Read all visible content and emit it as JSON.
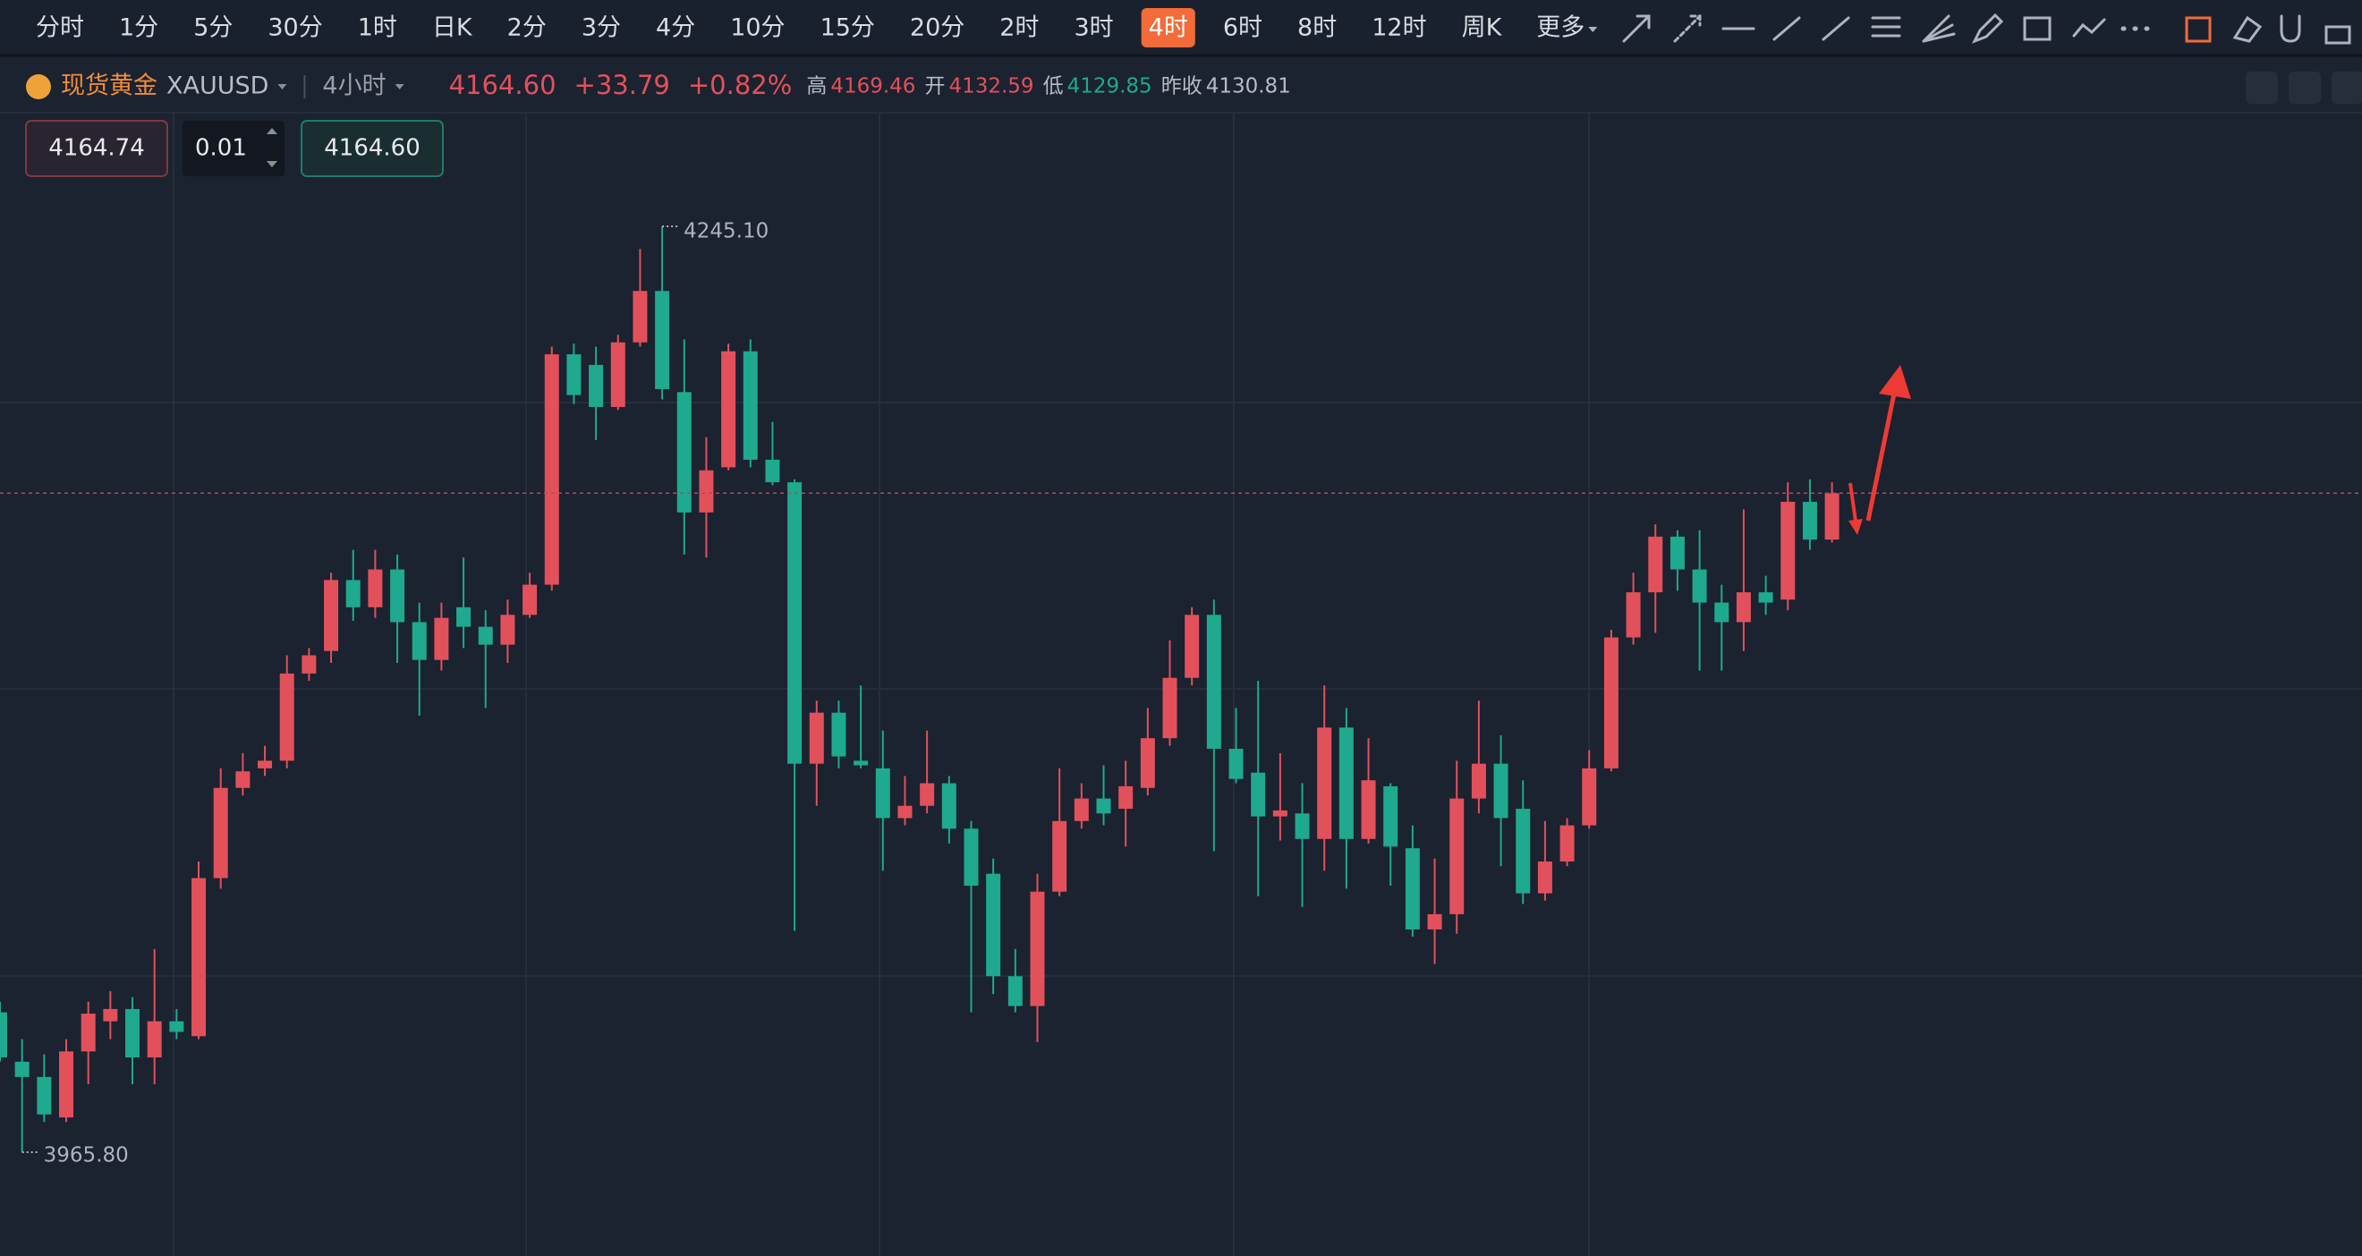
{
  "toolbar": {
    "intervals": [
      {
        "label": "分时"
      },
      {
        "label": "1分"
      },
      {
        "label": "5分"
      },
      {
        "label": "30分"
      },
      {
        "label": "1时"
      },
      {
        "label": "日K"
      },
      {
        "label": "2分"
      },
      {
        "label": "3分"
      },
      {
        "label": "4分"
      },
      {
        "label": "10分"
      },
      {
        "label": "15分"
      },
      {
        "label": "20分"
      },
      {
        "label": "2时"
      },
      {
        "label": "3时"
      },
      {
        "label": "4时",
        "active": true
      },
      {
        "label": "6时"
      },
      {
        "label": "8时"
      },
      {
        "label": "12时"
      },
      {
        "label": "周K"
      },
      {
        "label": "更多"
      }
    ]
  },
  "header": {
    "name": "现货黄金",
    "symbol": "XAUUSD",
    "interval": "4小时",
    "price": "4164.60",
    "change": "+33.79",
    "change_pct": "+0.82%",
    "high_label": "高",
    "high": "4169.46",
    "open_label": "开",
    "open": "4132.59",
    "low_label": "低",
    "low": "4129.85",
    "prev_close_label": "昨收",
    "prev_close": "4130.81"
  },
  "order_panel": {
    "sell": "4164.74",
    "lots": "0.01",
    "buy": "4164.60"
  },
  "chart_data": {
    "type": "candlestick",
    "up_color": "#e2515b",
    "down_color": "#1fa98e",
    "grid": true,
    "max_label": "4245.10",
    "min_label": "3965.80",
    "open": [
      4008.0,
      3993.1,
      3988.5,
      3976.3,
      3996.2,
      4005.3,
      4009.0,
      3994.4,
      4005.3,
      4000.8,
      4048.5,
      4075.7,
      4081.6,
      4083.9,
      4110.2,
      4117.0,
      4138.4,
      4130.2,
      4141.6,
      4125.7,
      4114.3,
      4130.2,
      4124.3,
      4118.9,
      4127.9,
      4137.0,
      4206.5,
      4203.3,
      4190.6,
      4210.1,
      4225.6,
      4195.1,
      4158.8,
      4172.4,
      4207.4,
      4174.7,
      4167.9,
      4083.0,
      4098.4,
      4083.9,
      4081.6,
      4066.6,
      4070.3,
      4077.1,
      4063.4,
      4049.8,
      4018.9,
      4009.9,
      4044.4,
      4065.7,
      4072.5,
      4069.4,
      4075.7,
      4090.7,
      4108.9,
      4127.9,
      4087.5,
      4080.3,
      4067.1,
      4068.0,
      4060.3,
      4093.9,
      4060.3,
      4076.2,
      4057.5,
      4033.0,
      4037.6,
      4072.5,
      4083.0,
      4069.4,
      4043.9,
      4053.5,
      4064.4,
      4081.6,
      4121.1,
      4134.7,
      4151.5,
      4141.6,
      4131.6,
      4125.7,
      4134.7,
      4132.5,
      4162.0,
      4150.6
    ],
    "high": [
      4011.2,
      3999.9,
      3995.3,
      3999.9,
      4011.2,
      4014.4,
      4012.6,
      4027.1,
      4009.0,
      4053.5,
      4081.6,
      4086.2,
      4088.4,
      4115.7,
      4117.9,
      4140.6,
      4147.5,
      4147.5,
      4146.1,
      4131.6,
      4131.6,
      4145.2,
      4129.3,
      4132.5,
      4140.6,
      4208.8,
      4209.7,
      4208.8,
      4212.4,
      4238.3,
      4245.1,
      4211.0,
      4181.5,
      4209.7,
      4211.0,
      4186.1,
      4168.8,
      4102.0,
      4102.0,
      4106.6,
      4093.0,
      4079.3,
      4093.0,
      4079.3,
      4065.7,
      4054.4,
      4027.1,
      4049.8,
      4081.6,
      4077.1,
      4082.5,
      4083.9,
      4099.8,
      4120.2,
      4130.2,
      4132.5,
      4099.8,
      4108.0,
      4086.2,
      4077.1,
      4106.6,
      4099.8,
      4090.7,
      4077.1,
      4064.4,
      4054.4,
      4083.9,
      4102.0,
      4091.6,
      4078.0,
      4065.7,
      4066.6,
      4087.1,
      4123.4,
      4140.6,
      4155.2,
      4153.4,
      4153.4,
      4137.0,
      4159.7,
      4139.7,
      4167.9,
      4168.8,
      4167.9
    ],
    "low": [
      3993.1,
      3965.8,
      3974.9,
      3974.9,
      3986.3,
      3999.9,
      3986.3,
      3986.3,
      3999.9,
      3999.9,
      4045.3,
      4073.4,
      4079.3,
      4081.6,
      4108.0,
      4113.4,
      4126.1,
      4127.0,
      4113.4,
      4097.5,
      4111.1,
      4117.9,
      4099.8,
      4113.4,
      4127.0,
      4135.2,
      4191.5,
      4180.6,
      4189.7,
      4208.8,
      4192.9,
      4146.1,
      4145.2,
      4171.5,
      4172.4,
      4167.0,
      4032.6,
      4070.3,
      4081.6,
      4081.6,
      4050.7,
      4064.4,
      4068.0,
      4058.9,
      4008.0,
      4013.5,
      4008.0,
      3999.0,
      4043.0,
      4063.4,
      4064.4,
      4058.0,
      4073.4,
      4088.4,
      4106.6,
      4056.6,
      4077.1,
      4043.0,
      4059.8,
      4039.8,
      4050.7,
      4045.3,
      4058.9,
      4046.2,
      4030.8,
      4022.6,
      4031.7,
      4068.0,
      4052.1,
      4040.7,
      4041.7,
      4052.1,
      4063.4,
      4080.7,
      4118.9,
      4122.5,
      4135.2,
      4111.1,
      4111.1,
      4117.0,
      4127.9,
      4129.3,
      4147.5,
      4149.7
    ],
    "close": [
      3994.4,
      3988.5,
      3977.2,
      3996.2,
      4007.6,
      4009.0,
      3994.4,
      4005.3,
      4002.1,
      4048.5,
      4075.7,
      4080.7,
      4083.9,
      4110.2,
      4115.7,
      4138.4,
      4130.2,
      4141.6,
      4125.7,
      4114.3,
      4127.0,
      4124.3,
      4118.9,
      4127.9,
      4137.0,
      4206.5,
      4194.2,
      4190.6,
      4210.1,
      4225.6,
      4196.0,
      4158.8,
      4171.5,
      4207.4,
      4174.7,
      4167.9,
      4083.0,
      4098.4,
      4085.2,
      4082.5,
      4066.6,
      4070.3,
      4077.1,
      4063.4,
      4046.2,
      4018.9,
      4009.9,
      4044.4,
      4065.7,
      4072.5,
      4068.0,
      4076.2,
      4090.7,
      4108.9,
      4127.9,
      4087.5,
      4078.4,
      4067.1,
      4068.9,
      4060.3,
      4093.9,
      4060.3,
      4078.0,
      4058.0,
      4033.0,
      4037.6,
      4072.5,
      4083.0,
      4066.6,
      4043.9,
      4053.5,
      4064.4,
      4081.6,
      4121.1,
      4134.7,
      4151.5,
      4141.6,
      4131.6,
      4125.7,
      4134.7,
      4131.6,
      4162.0,
      4150.6,
      4164.6
    ]
  }
}
